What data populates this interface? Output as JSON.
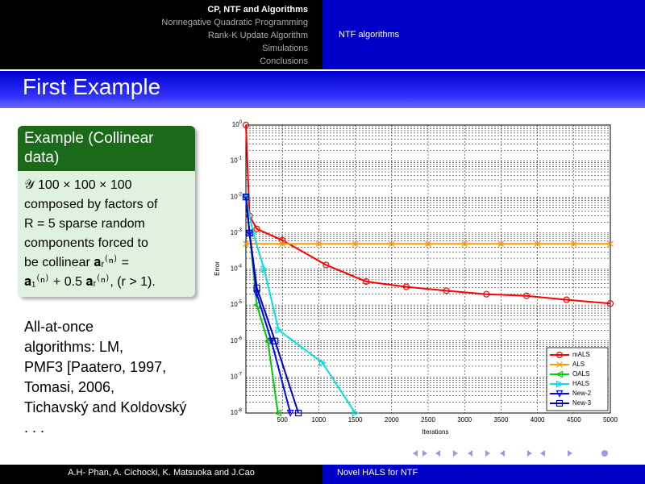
{
  "header": {
    "sections": [
      "CP, NTF and Algorithms",
      "Nonnegative Quadratic Programming",
      "Rank-K Update Algorithm",
      "Simulations",
      "Conclusions"
    ],
    "subsection": "NTF algorithms"
  },
  "frame_title": "First Example",
  "block": {
    "title": "Example (Collinear data)",
    "lines": [
      "𝒴 100 × 100 × 100",
      "composed by factors of",
      "R = 5 sparse random",
      "components forced to",
      "be collinear 𝐚ᵣ⁽ⁿ⁾ =",
      "𝐚₁⁽ⁿ⁾ + 0.5 𝐚ᵣ⁽ⁿ⁾, (r > 1)."
    ]
  },
  "body_lines": [
    "All-at-once",
    "algorithms: LM,",
    "PMF3 [Paatero, 1997,",
    "Tomasi, 2006,",
    "Tichavský and Koldovský",
    ". . ."
  ],
  "footer": {
    "authors": "A.H- Phan, A. Cichocki, K. Matsuoka and J.Cao",
    "title": "Novel HALS for NTF"
  },
  "chart_data": {
    "type": "line",
    "xlabel": "Iterations",
    "ylabel": "Error",
    "log_y": true,
    "grid": true,
    "legend": "lower right",
    "xlim": [
      0,
      5000
    ],
    "xticks": [
      500,
      1000,
      1500,
      2000,
      2500,
      3000,
      3500,
      4000,
      4500,
      5000
    ],
    "ylim": [
      1e-08,
      1
    ],
    "yticks": [
      {
        "value": 1,
        "label": "10^0"
      },
      {
        "value": 0.1,
        "label": "10^-1"
      },
      {
        "value": 0.01,
        "label": "10^-2"
      },
      {
        "value": 0.001,
        "label": "10^-3"
      },
      {
        "value": 0.0001,
        "label": "10^-4"
      },
      {
        "value": 1e-05,
        "label": "10^-5"
      },
      {
        "value": 1e-06,
        "label": "10^-6"
      },
      {
        "value": 1e-07,
        "label": "10^-7"
      },
      {
        "value": 1e-08,
        "label": "10^-8"
      }
    ],
    "series": [
      {
        "name": "mALS",
        "color": "#ff0000",
        "marker": "circle",
        "x": [
          0,
          50,
          150,
          500,
          1100,
          1650,
          2200,
          2750,
          3300,
          3850,
          4400,
          5000
        ],
        "values": [
          1,
          0.003,
          0.0013,
          0.00063,
          0.00013,
          4.5e-05,
          3.2e-05,
          2.5e-05,
          2e-05,
          1.8e-05,
          1.4e-05,
          1.1e-05
        ]
      },
      {
        "name": "ALS",
        "color": "#ff9900",
        "marker": "x",
        "x": [
          0,
          500,
          1000,
          1500,
          2000,
          2500,
          3000,
          3500,
          4000,
          4500,
          5000
        ],
        "values": [
          0.0005,
          0.0005,
          0.0005,
          0.0005,
          0.0005,
          0.0005,
          0.0005,
          0.0005,
          0.0005,
          0.0005,
          0.0005
        ]
      },
      {
        "name": "OALS",
        "color": "#00cc00",
        "marker": "tri-left",
        "x": [
          0,
          50,
          150,
          300,
          440
        ],
        "values": [
          0.01,
          0.001,
          1e-05,
          1e-06,
          1e-08
        ]
      },
      {
        "name": "HALS",
        "color": "#00e0e0",
        "marker": "tri-right",
        "x": [
          0,
          100,
          250,
          450,
          1050,
          1500
        ],
        "values": [
          0.01,
          0.001,
          0.0001,
          2e-06,
          2.5e-07,
          1e-08
        ]
      },
      {
        "name": "New-2",
        "color": "#0000ff",
        "marker": "tri-down",
        "x": [
          0,
          50,
          150,
          350,
          610
        ],
        "values": [
          0.01,
          0.001,
          2e-05,
          1e-06,
          1e-08
        ]
      },
      {
        "name": "New-3",
        "color": "#0000cc",
        "marker": "square",
        "x": [
          0,
          50,
          150,
          400,
          720
        ],
        "values": [
          0.01,
          0.001,
          3e-05,
          1e-06,
          1e-08
        ]
      }
    ]
  }
}
